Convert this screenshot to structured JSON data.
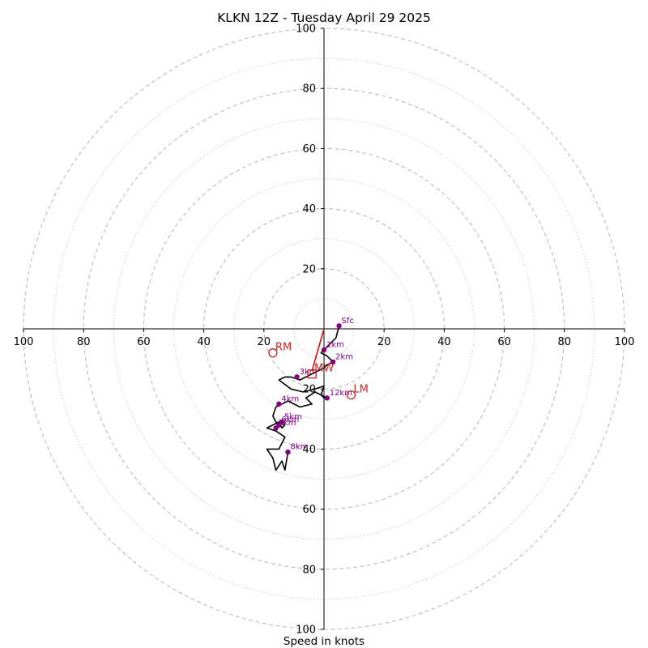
{
  "chart_data": {
    "type": "scatter",
    "subtype": "hodograph",
    "title": "KLKN 12Z - Tuesday April 29 2025",
    "xlabel": "Speed in knots",
    "ylabel": "",
    "xlim": [
      -100,
      100
    ],
    "ylim": [
      -100,
      100
    ],
    "ring_labels_major": [
      20,
      40,
      60,
      80,
      100
    ],
    "ring_major_step": 20,
    "ring_minor_step": 10,
    "grid": true,
    "colors": {
      "trace": "#000000",
      "height_points": "#800080",
      "motion": "#cc2222",
      "grid": "#bbbbbb",
      "axis": "#000000"
    },
    "trace": [
      [
        5,
        1
      ],
      [
        4,
        -3
      ],
      [
        2,
        -5
      ],
      [
        0,
        -7
      ],
      [
        -1,
        -8
      ],
      [
        1,
        -9
      ],
      [
        3,
        -11
      ],
      [
        1,
        -12
      ],
      [
        0,
        -13
      ],
      [
        -2,
        -14
      ],
      [
        -4,
        -15
      ],
      [
        -6,
        -16
      ],
      [
        -8,
        -17
      ],
      [
        -11,
        -16
      ],
      [
        -13,
        -16
      ],
      [
        -15,
        -17
      ],
      [
        -11,
        -20
      ],
      [
        -7,
        -21
      ],
      [
        -3,
        -20
      ],
      [
        0,
        -19
      ],
      [
        -1,
        -22
      ],
      [
        0,
        -23
      ],
      [
        1,
        -23
      ],
      [
        -3,
        -21
      ],
      [
        -6,
        -23
      ],
      [
        -4,
        -25
      ],
      [
        -8,
        -26
      ],
      [
        -12,
        -24
      ],
      [
        -14,
        -25
      ],
      [
        -16,
        -26
      ],
      [
        -17,
        -29
      ],
      [
        -16,
        -31
      ],
      [
        -13,
        -32
      ],
      [
        -14,
        -33
      ],
      [
        -15,
        -31
      ],
      [
        -19,
        -33
      ],
      [
        -16,
        -34
      ],
      [
        -13,
        -36
      ],
      [
        -15,
        -40
      ],
      [
        -19,
        -40
      ],
      [
        -17,
        -43
      ],
      [
        -16,
        -47
      ],
      [
        -14,
        -44
      ],
      [
        -13,
        -47
      ],
      [
        -12,
        -41
      ]
    ],
    "height_points": [
      {
        "label": "Sfc",
        "x": 5,
        "y": 1
      },
      {
        "label": "1km",
        "x": 0,
        "y": -7
      },
      {
        "label": "2km",
        "x": 3,
        "y": -11
      },
      {
        "label": "3km",
        "x": -9,
        "y": -16
      },
      {
        "label": "4km",
        "x": -15,
        "y": -25
      },
      {
        "label": "5km",
        "x": -14,
        "y": -31
      },
      {
        "label": "6km",
        "x": -15,
        "y": -32
      },
      {
        "label": "7km",
        "x": -16,
        "y": -33
      },
      {
        "label": "8km",
        "x": -12,
        "y": -41
      },
      {
        "label": "12km",
        "x": 1,
        "y": -23
      }
    ],
    "storm_motion": {
      "RM": {
        "label": "RM",
        "x": -17,
        "y": -8
      },
      "LM": {
        "label": "LM",
        "x": 9,
        "y": -22
      },
      "MW": {
        "label": "MW",
        "x": -4,
        "y": -15
      }
    },
    "shear_vector": {
      "from": [
        0,
        0
      ],
      "to": [
        -4,
        -14
      ]
    }
  }
}
